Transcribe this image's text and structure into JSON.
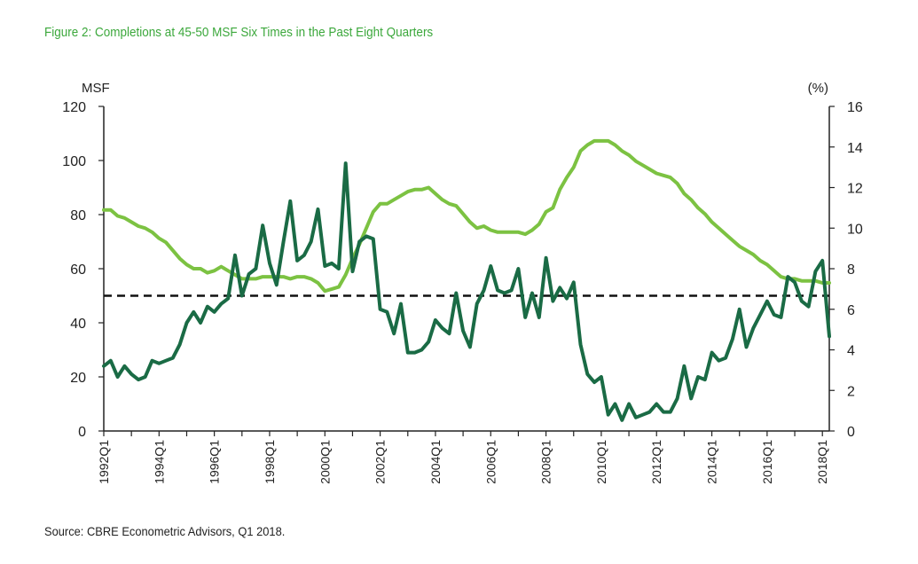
{
  "title": "Figure 2: Completions at 45-50 MSF Six Times in the Past Eight Quarters",
  "source": "Source: CBRE Econometric Advisors, Q1 2018.",
  "colors": {
    "title": "#3ca83c",
    "completions": "#1a6b45",
    "vacancy": "#7cc242",
    "threshold": "#111111",
    "axis": "#222222"
  },
  "chart_data": {
    "type": "line",
    "left_axis_unit": "MSF",
    "right_axis_unit": "(%)",
    "left_ylim": [
      0,
      120
    ],
    "right_ylim": [
      0,
      16
    ],
    "left_ticks": [
      "0",
      "20",
      "40",
      "60",
      "80",
      "100",
      "120"
    ],
    "right_ticks": [
      "0",
      "2",
      "4",
      "6",
      "8",
      "10",
      "12",
      "14",
      "16"
    ],
    "x_start": "1992Q1",
    "x_end": "2018Q1",
    "x_tick_labels": [
      "1992Q1",
      "1994Q1",
      "1996Q1",
      "1998Q1",
      "2000Q1",
      "2002Q1",
      "2004Q1",
      "2006Q1",
      "2008Q1",
      "2010Q1",
      "2012Q1",
      "2014Q1",
      "2016Q1",
      "2018Q1"
    ],
    "grid": false,
    "threshold": {
      "axis": "left",
      "value": 50,
      "style": "dashed"
    },
    "series": [
      {
        "axis": "left",
        "color": "#1a6b45",
        "values": [
          24,
          26,
          20,
          24,
          21,
          19,
          20,
          26,
          25,
          26,
          27,
          32,
          40,
          44,
          40,
          46,
          44,
          47,
          49,
          65,
          50,
          58,
          60,
          76,
          62,
          54,
          70,
          85,
          63,
          65,
          70,
          82,
          61,
          62,
          60,
          99,
          59,
          70,
          72,
          71,
          45,
          44,
          36,
          47,
          29,
          29,
          30,
          33,
          41,
          38,
          36,
          51,
          37,
          31,
          47,
          52,
          61,
          52,
          51,
          52,
          60,
          42,
          51,
          42,
          64,
          48,
          53,
          49,
          55,
          32,
          21,
          18,
          20,
          6,
          10,
          4,
          10,
          5,
          6,
          7,
          10,
          7,
          7,
          12,
          24,
          12,
          20,
          19,
          29,
          26,
          27,
          34,
          45,
          31,
          38,
          43,
          48,
          43,
          42,
          57,
          55,
          48,
          46,
          59,
          63,
          35
        ]
      },
      {
        "axis": "right",
        "color": "#7cc242",
        "values": [
          10.9,
          10.9,
          10.6,
          10.5,
          10.3,
          10.1,
          10.0,
          9.8,
          9.5,
          9.3,
          8.9,
          8.5,
          8.2,
          8.0,
          8.0,
          7.8,
          7.9,
          8.1,
          7.9,
          7.7,
          7.5,
          7.5,
          7.5,
          7.6,
          7.6,
          7.6,
          7.6,
          7.5,
          7.6,
          7.6,
          7.5,
          7.3,
          6.9,
          7.0,
          7.1,
          7.7,
          8.5,
          9.2,
          10.0,
          10.8,
          11.2,
          11.2,
          11.4,
          11.6,
          11.8,
          11.9,
          11.9,
          12.0,
          11.7,
          11.4,
          11.2,
          11.1,
          10.7,
          10.3,
          10.0,
          10.1,
          9.9,
          9.8,
          9.8,
          9.8,
          9.8,
          9.7,
          9.9,
          10.2,
          10.8,
          11.0,
          11.9,
          12.5,
          13.0,
          13.8,
          14.1,
          14.3,
          14.3,
          14.3,
          14.1,
          13.8,
          13.6,
          13.3,
          13.1,
          12.9,
          12.7,
          12.6,
          12.5,
          12.2,
          11.7,
          11.4,
          11.0,
          10.7,
          10.3,
          10.0,
          9.7,
          9.4,
          9.1,
          8.9,
          8.7,
          8.4,
          8.2,
          7.9,
          7.6,
          7.5,
          7.5,
          7.4,
          7.4,
          7.4,
          7.3,
          7.3
        ]
      }
    ]
  }
}
